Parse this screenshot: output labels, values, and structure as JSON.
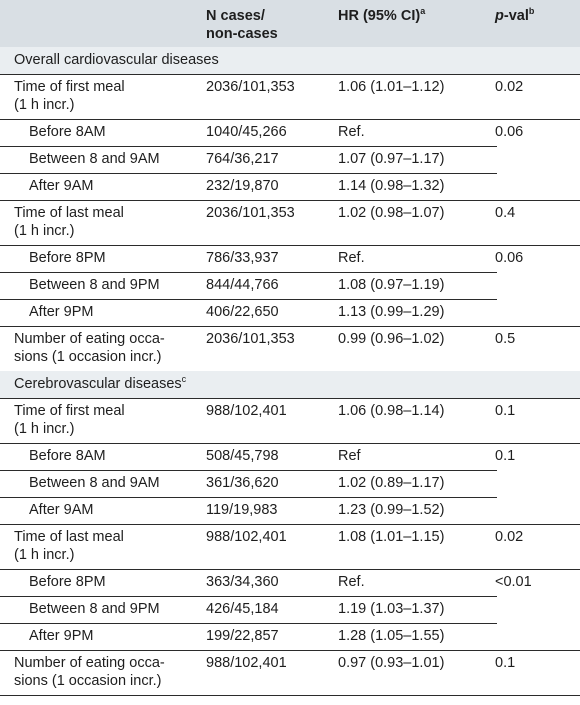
{
  "header": {
    "col_cases_line1": "N cases/",
    "col_cases_line2": "non-cases",
    "col_hr": "HR (95% CI)",
    "col_hr_sup": "a",
    "col_p_italic": "p",
    "col_p_rest": "-val",
    "col_p_sup": "b"
  },
  "sections": [
    {
      "title": "Overall cardiovascular diseases",
      "title_sup": "",
      "groups": [
        {
          "label": "Time of first meal\n(1 h incr.)",
          "cases": "2036/101,353",
          "hr": "1.06 (1.01–1.12)",
          "p": "0.02",
          "subrows": [
            {
              "label": "Before 8AM",
              "cases": "1040/45,266",
              "hr": "Ref."
            },
            {
              "label": "Between 8 and 9AM",
              "cases": "764/36,217",
              "hr": "1.07 (0.97–1.17)"
            },
            {
              "label": "After 9AM",
              "cases": "232/19,870",
              "hr": "1.14 (0.98–1.32)"
            }
          ],
          "sub_p": "0.06"
        },
        {
          "label": "Time of last meal\n(1 h incr.)",
          "cases": "2036/101,353",
          "hr": "1.02 (0.98–1.07)",
          "p": "0.4",
          "subrows": [
            {
              "label": "Before 8PM",
              "cases": "786/33,937",
              "hr": "Ref."
            },
            {
              "label": "Between 8 and 9PM",
              "cases": "844/44,766",
              "hr": "1.08 (0.97–1.19)"
            },
            {
              "label": "After 9PM",
              "cases": "406/22,650",
              "hr": "1.13 (0.99–1.29)"
            }
          ],
          "sub_p": "0.06"
        },
        {
          "label": "Number of eating occa-\nsions (1 occasion incr.)",
          "cases": "2036/101,353",
          "hr": "0.99 (0.96–1.02)",
          "p": "0.5",
          "subrows": [],
          "sub_p": ""
        }
      ]
    },
    {
      "title": "Cerebrovascular diseases",
      "title_sup": "c",
      "groups": [
        {
          "label": "Time of first meal\n(1 h incr.)",
          "cases": "988/102,401",
          "hr": "1.06 (0.98–1.14)",
          "p": "0.1",
          "subrows": [
            {
              "label": "Before 8AM",
              "cases": "508/45,798",
              "hr": "Ref"
            },
            {
              "label": "Between 8 and 9AM",
              "cases": "361/36,620",
              "hr": "1.02 (0.89–1.17)"
            },
            {
              "label": "After 9AM",
              "cases": "119/19,983",
              "hr": "1.23 (0.99–1.52)"
            }
          ],
          "sub_p": "0.1"
        },
        {
          "label": "Time of last meal\n(1 h incr.)",
          "cases": "988/102,401",
          "hr": "1.08 (1.01–1.15)",
          "p": "0.02",
          "subrows": [
            {
              "label": "Before 8PM",
              "cases": "363/34,360",
              "hr": "Ref."
            },
            {
              "label": "Between 8 and 9PM",
              "cases": "426/45,184",
              "hr": "1.19 (1.03–1.37)"
            },
            {
              "label": "After 9PM",
              "cases": "199/22,857",
              "hr": "1.28 (1.05–1.55)"
            }
          ],
          "sub_p": "<0.01"
        },
        {
          "label": "Number of eating occa-\nsions (1 occasion incr.)",
          "cases": "988/102,401",
          "hr": "0.97 (0.93–1.01)",
          "p": "0.1",
          "subrows": [],
          "sub_p": ""
        }
      ]
    }
  ]
}
